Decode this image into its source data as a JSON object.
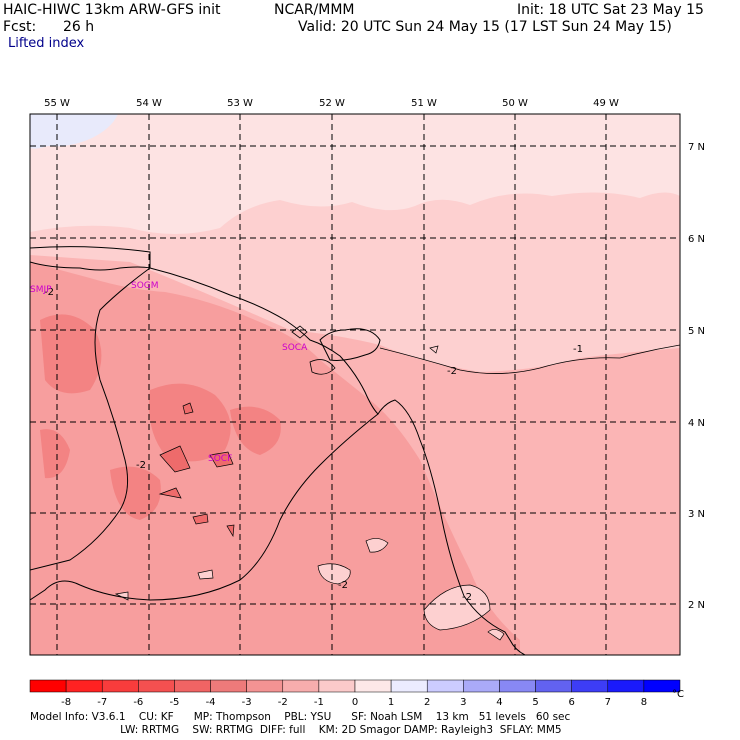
{
  "header": {
    "model": "HAIC-HIWC 13km ARW-GFS init",
    "org": "NCAR/MMM",
    "init": "Init: 18 UTC Sat 23 May 15",
    "fcst_label": "Fcst:",
    "fcst_value": "26 h",
    "valid": "Valid: 20 UTC Sun 24 May 15 (17 LST Sun 24 May 15)",
    "field": "Lifted index"
  },
  "map": {
    "lon_labels": [
      "55 W",
      "54 W",
      "53 W",
      "52 W",
      "51 W",
      "50 W",
      "49 W"
    ],
    "lat_labels": [
      "7 N",
      "6 N",
      "5 N",
      "4 N",
      "3 N",
      "2 N"
    ],
    "stations": [
      "SMJP",
      "SOCA",
      "SOGM",
      "SOCF"
    ],
    "contour_labels": [
      "-2",
      "-2",
      "-2",
      "-2",
      "-1",
      "-2"
    ],
    "colors": {
      "shade_0_to_neg1": "#fdd0d0",
      "shade_neg1_to_neg2": "#fbb5b5",
      "shade_neg2_to_neg3": "#f79e9e",
      "shade_neg3_to_neg4": "#f38383",
      "shade_pos": "#e6e8fb",
      "coast": "#000000",
      "station": "#cc00cc"
    }
  },
  "colorbar": {
    "ticks": [
      "-8",
      "-7",
      "-6",
      "-5",
      "-4",
      "-3",
      "-2",
      "-1",
      "0",
      "1",
      "2",
      "3",
      "4",
      "5",
      "6",
      "7",
      "8"
    ],
    "unit": "°C",
    "colors": [
      "#ff0000",
      "#ff2222",
      "#f83c3c",
      "#f45050",
      "#f06464",
      "#ee7a7a",
      "#f39393",
      "#f7adad",
      "#fbcaca",
      "#fde8e8",
      "#ececff",
      "#ccccff",
      "#aaaaf8",
      "#8888f4",
      "#6262f0",
      "#3d3df6",
      "#1a1afb",
      "#0000ff"
    ]
  },
  "footer": {
    "line1": "Model Info: V3.6.1    CU: KF      MP: Thompson    PBL: YSU      SF: Noah LSM    13 km   51 levels   60 sec",
    "line2": "                           LW: RRTMG    SW: RRTMG  DIFF: full    KM: 2D Smagor DAMP: Rayleigh3  SFLAY: MM5"
  }
}
